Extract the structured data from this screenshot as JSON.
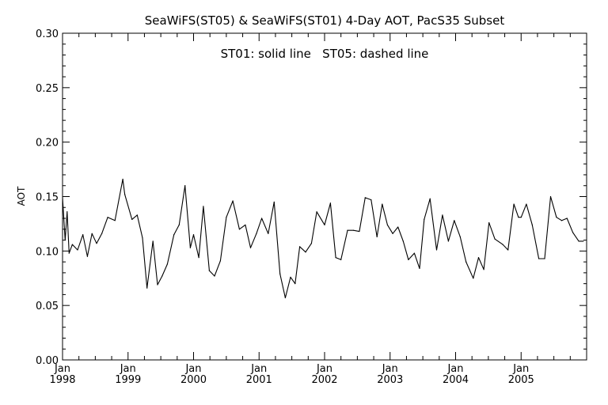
{
  "chart_data": {
    "type": "line",
    "title": "SeaWiFS(ST05) & SeaWiFS(ST01) 4-Day AOT, PacS35 Subset",
    "annotation": "ST01: solid line   ST05: dashed line",
    "xlabel": "",
    "ylabel": "AOT",
    "xlim": [
      1998.0,
      2006.0
    ],
    "ylim": [
      0.0,
      0.3
    ],
    "y_ticks": [
      "0.00",
      "0.05",
      "0.10",
      "0.15",
      "0.20",
      "0.25",
      "0.30"
    ],
    "x_ticks": [
      {
        "x": 1998.0,
        "month": "Jan",
        "year": "1998"
      },
      {
        "x": 1999.0,
        "month": "Jan",
        "year": "1999"
      },
      {
        "x": 2000.0,
        "month": "Jan",
        "year": "2000"
      },
      {
        "x": 2001.0,
        "month": "Jan",
        "year": "2001"
      },
      {
        "x": 2002.0,
        "month": "Jan",
        "year": "2002"
      },
      {
        "x": 2003.0,
        "month": "Jan",
        "year": "2003"
      },
      {
        "x": 2004.0,
        "month": "Jan",
        "year": "2004"
      },
      {
        "x": 2005.0,
        "month": "Jan",
        "year": "2005"
      }
    ],
    "grid": false,
    "series": [
      {
        "name": "ST01",
        "style": "solid",
        "color": "#000000",
        "x": [
          1998.0,
          1998.04,
          1998.07,
          1998.1,
          1998.15,
          1998.23,
          1998.31,
          1998.38,
          1998.45,
          1998.52,
          1998.6,
          1998.69,
          1998.8,
          1998.92,
          1998.95,
          1999.06,
          1999.14,
          1999.22,
          1999.29,
          1999.38,
          1999.45,
          1999.52,
          1999.6,
          1999.7,
          1999.78,
          1999.87,
          1999.95,
          2000.0,
          2000.08,
          2000.15,
          2000.24,
          2000.32,
          2000.41,
          2000.5,
          2000.6,
          2000.7,
          2000.79,
          2000.87,
          2000.96,
          2001.04,
          2001.14,
          2001.23,
          2001.32,
          2001.4,
          2001.48,
          2001.55,
          2001.62,
          2001.71,
          2001.8,
          2001.88,
          2002.0,
          2002.09,
          2002.17,
          2002.25,
          2002.35,
          2002.44,
          2002.53,
          2002.62,
          2002.71,
          2002.8,
          2002.88,
          2002.96,
          2003.04,
          2003.12,
          2003.2,
          2003.28,
          2003.37,
          2003.45,
          2003.52,
          2003.61,
          2003.71,
          2003.8,
          2003.89,
          2003.98,
          2004.07,
          2004.16,
          2004.27,
          2004.35,
          2004.43,
          2004.51,
          2004.6,
          2004.72,
          2004.8,
          2004.89,
          2004.96,
          2005.0,
          2005.08,
          2005.17,
          2005.27,
          2005.36,
          2005.45,
          2005.54,
          2005.62,
          2005.7,
          2005.79,
          2005.88,
          2005.95
        ],
        "y": [
          0.149,
          0.11,
          0.136,
          0.098,
          0.106,
          0.101,
          0.115,
          0.095,
          0.116,
          0.107,
          0.116,
          0.131,
          0.128,
          0.166,
          0.152,
          0.129,
          0.133,
          0.112,
          0.066,
          0.109,
          0.069,
          0.077,
          0.088,
          0.115,
          0.124,
          0.16,
          0.103,
          0.115,
          0.094,
          0.141,
          0.082,
          0.077,
          0.091,
          0.131,
          0.146,
          0.12,
          0.124,
          0.103,
          0.116,
          0.13,
          0.116,
          0.145,
          0.079,
          0.057,
          0.076,
          0.07,
          0.104,
          0.099,
          0.107,
          0.136,
          0.124,
          0.144,
          0.094,
          0.092,
          0.119,
          0.119,
          0.118,
          0.149,
          0.147,
          0.113,
          0.143,
          0.124,
          0.116,
          0.122,
          0.109,
          0.092,
          0.098,
          0.084,
          0.129,
          0.148,
          0.101,
          0.133,
          0.109,
          0.128,
          0.113,
          0.09,
          0.075,
          0.094,
          0.083,
          0.126,
          0.111,
          0.106,
          0.101,
          0.143,
          0.131,
          0.131,
          0.143,
          0.124,
          0.093,
          0.093,
          0.15,
          0.131,
          0.128,
          0.13,
          0.117,
          0.109,
          0.109
        ]
      }
    ]
  }
}
